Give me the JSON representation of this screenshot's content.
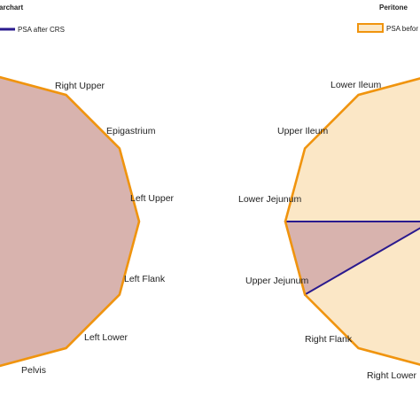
{
  "colors": {
    "before_fill": "#fbe7c6",
    "before_stroke": "#f0940e",
    "after_fill": "#d8b3ae",
    "after_stroke": "#2a1a8e",
    "grid": "#c9a69e"
  },
  "chart_data": [
    {
      "type": "radar",
      "title": "archart",
      "legend": [
        {
          "label": "PSA after CRS",
          "color": "#2a1a8e"
        }
      ],
      "legend_position": "top-left",
      "categories": [
        "Right Upper",
        "Epigastrium",
        "Left Upper",
        "Left Flank",
        "Left Lower",
        "Pelvis"
      ],
      "series": [
        {
          "name": "PSA before CRS",
          "values": [
            3,
            3,
            3,
            3,
            3,
            3
          ]
        },
        {
          "name": "PSA after CRS",
          "values": [
            3,
            3,
            3,
            3,
            3,
            3
          ]
        }
      ],
      "rlim": [
        0,
        3
      ],
      "grid": true
    },
    {
      "type": "radar",
      "title": "Peritone",
      "legend": [
        {
          "label": "PSA befor",
          "color": "#f0940e"
        }
      ],
      "legend_position": "top-right",
      "categories": [
        "Lower Ileum",
        "Upper Ileum",
        "Lower Jejunum",
        "Upper Jejunum",
        "Right Flank",
        "Right Lower"
      ],
      "series": [
        {
          "name": "PSA before CRS",
          "values": [
            3,
            3,
            3,
            3,
            3,
            3
          ]
        },
        {
          "name": "PSA after CRS",
          "values": [
            0,
            0,
            3,
            3,
            0,
            0
          ]
        }
      ],
      "rlim": [
        0,
        3
      ],
      "grid": true
    }
  ]
}
